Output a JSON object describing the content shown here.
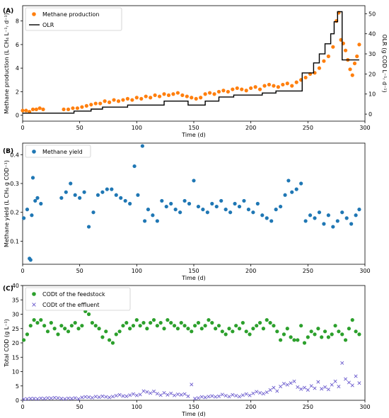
{
  "chart_data": [
    {
      "panel_label": "(A)",
      "type": "scatter",
      "xlabel": "Time (d)",
      "ylabel": "Methane production (L CH₄ L⁻¹ᵣ d⁻¹)",
      "y2label": "OLR (g COD L⁻¹ᵣ d⁻¹)",
      "xlim": [
        0,
        300
      ],
      "ylim": [
        -0.5,
        9.3
      ],
      "y2lim": [
        -3.5,
        54
      ],
      "xticks": [
        "0",
        "50",
        "100",
        "150",
        "200",
        "250",
        "300"
      ],
      "yticks": [
        "0",
        "2",
        "4",
        "6",
        "8"
      ],
      "y2ticks": [
        "0",
        "10",
        "20",
        "30",
        "40",
        "50"
      ],
      "legend": {
        "position": "top-left",
        "entries": [
          "Methane production",
          "OLR"
        ]
      },
      "series": [
        {
          "name": "Methane production",
          "kind": "scatter",
          "color": "#ff7f0e",
          "x": [
            0,
            3,
            6,
            9,
            12,
            15,
            18,
            36,
            40,
            44,
            48,
            52,
            56,
            60,
            64,
            68,
            72,
            76,
            80,
            84,
            88,
            92,
            96,
            100,
            104,
            108,
            112,
            116,
            120,
            124,
            128,
            132,
            136,
            140,
            144,
            148,
            152,
            156,
            160,
            164,
            168,
            172,
            176,
            180,
            184,
            188,
            192,
            196,
            200,
            204,
            208,
            212,
            216,
            220,
            224,
            228,
            232,
            236,
            240,
            244,
            248,
            252,
            256,
            260,
            264,
            268,
            272,
            275,
            277,
            279,
            281,
            283,
            285,
            287,
            289,
            291,
            293,
            295
          ],
          "values": [
            0.4,
            0.4,
            0.3,
            0.5,
            0.5,
            0.6,
            0.5,
            0.5,
            0.5,
            0.6,
            0.6,
            0.7,
            0.8,
            0.9,
            1.0,
            1.0,
            1.2,
            1.1,
            1.3,
            1.2,
            1.3,
            1.4,
            1.3,
            1.5,
            1.4,
            1.6,
            1.5,
            1.7,
            1.6,
            1.8,
            1.7,
            1.8,
            1.9,
            1.7,
            1.6,
            1.5,
            1.4,
            1.5,
            1.8,
            1.9,
            1.8,
            2.0,
            2.1,
            2.0,
            2.2,
            2.3,
            2.2,
            2.1,
            2.3,
            2.4,
            2.2,
            2.5,
            2.6,
            2.5,
            2.4,
            2.6,
            2.7,
            2.5,
            2.8,
            3.0,
            3.2,
            3.5,
            3.6,
            4.0,
            4.6,
            5.0,
            5.8,
            8.0,
            8.7,
            6.4,
            6.1,
            5.5,
            4.7,
            3.9,
            3.4,
            4.4,
            5.0,
            6.0
          ]
        },
        {
          "name": "OLR",
          "kind": "step",
          "axis": "right",
          "color": "#000000",
          "x": [
            0,
            30,
            45,
            60,
            70,
            80,
            92,
            115,
            124,
            136,
            145,
            160,
            172,
            185,
            210,
            222,
            245,
            255,
            260,
            265,
            270,
            273,
            276,
            280,
            295
          ],
          "values": [
            0.5,
            0.5,
            1.5,
            2.5,
            3.5,
            3.5,
            4.5,
            4.5,
            6.5,
            6.5,
            4.5,
            6.5,
            8.5,
            9.5,
            10.5,
            11.5,
            20.5,
            25.5,
            30,
            35,
            40,
            46,
            51,
            27,
            27
          ]
        }
      ]
    },
    {
      "panel_label": "(B)",
      "type": "scatter",
      "xlabel": "Time (d)",
      "ylabel": "Methane yield (L CH₄ g COD⁻¹)",
      "xlim": [
        0,
        300
      ],
      "ylim": [
        0.02,
        0.44
      ],
      "xticks": [
        "0",
        "50",
        "100",
        "150",
        "200",
        "250",
        "300"
      ],
      "yticks": [
        "0.1",
        "0.2",
        "0.3",
        "0.4"
      ],
      "legend": {
        "position": "top-left",
        "entries": [
          "Methane yield"
        ]
      },
      "series": [
        {
          "name": "Methane yield",
          "color": "#1f77b4",
          "x": [
            1,
            4,
            6,
            7,
            8,
            9,
            11,
            13,
            16,
            34,
            38,
            42,
            46,
            50,
            54,
            58,
            62,
            66,
            70,
            74,
            78,
            82,
            86,
            90,
            94,
            98,
            101,
            105,
            107,
            110,
            114,
            118,
            122,
            126,
            130,
            134,
            138,
            142,
            146,
            150,
            154,
            158,
            162,
            166,
            170,
            174,
            178,
            182,
            186,
            190,
            194,
            198,
            202,
            206,
            210,
            214,
            218,
            222,
            226,
            230,
            233,
            236,
            240,
            244,
            248,
            252,
            256,
            260,
            264,
            268,
            272,
            276,
            280,
            284,
            288,
            292,
            295
          ],
          "values": [
            0.18,
            0.21,
            0.04,
            0.035,
            0.19,
            0.32,
            0.24,
            0.25,
            0.23,
            0.25,
            0.27,
            0.3,
            0.26,
            0.25,
            0.27,
            0.15,
            0.2,
            0.26,
            0.27,
            0.28,
            0.28,
            0.26,
            0.25,
            0.24,
            0.23,
            0.36,
            0.26,
            0.43,
            0.17,
            0.21,
            0.19,
            0.17,
            0.24,
            0.22,
            0.23,
            0.21,
            0.2,
            0.24,
            0.23,
            0.31,
            0.22,
            0.21,
            0.2,
            0.23,
            0.22,
            0.24,
            0.21,
            0.2,
            0.23,
            0.22,
            0.24,
            0.21,
            0.2,
            0.23,
            0.19,
            0.18,
            0.17,
            0.21,
            0.22,
            0.26,
            0.31,
            0.27,
            0.28,
            0.3,
            0.17,
            0.19,
            0.18,
            0.2,
            0.16,
            0.19,
            0.15,
            0.17,
            0.2,
            0.18,
            0.16,
            0.19,
            0.21
          ]
        }
      ]
    },
    {
      "panel_label": "(C)",
      "type": "scatter",
      "xlabel": "Time (d)",
      "ylabel": "Total COD (g L⁻¹)",
      "xlim": [
        0,
        300
      ],
      "ylim": [
        0,
        40
      ],
      "xticks": [
        "0",
        "50",
        "100",
        "150",
        "200",
        "250",
        "300"
      ],
      "yticks": [
        "0",
        "5",
        "10",
        "15",
        "20",
        "25",
        "30",
        "35",
        "40"
      ],
      "legend": {
        "position": "top-left",
        "entries": [
          "CODt of the feedstock",
          "CODt of the effluent"
        ]
      },
      "series": [
        {
          "name": "CODt of the feedstock",
          "marker": "circle",
          "color": "#2ca02c",
          "x": [
            1,
            4,
            7,
            10,
            13,
            16,
            19,
            22,
            25,
            28,
            31,
            34,
            37,
            40,
            43,
            46,
            49,
            52,
            55,
            58,
            61,
            64,
            67,
            70,
            73,
            76,
            79,
            82,
            85,
            88,
            91,
            94,
            97,
            100,
            103,
            106,
            109,
            112,
            115,
            118,
            121,
            124,
            127,
            130,
            133,
            136,
            139,
            142,
            145,
            148,
            151,
            154,
            157,
            160,
            163,
            166,
            169,
            172,
            175,
            178,
            181,
            184,
            187,
            190,
            193,
            196,
            199,
            202,
            205,
            208,
            211,
            214,
            217,
            220,
            223,
            226,
            229,
            232,
            235,
            238,
            241,
            244,
            247,
            250,
            253,
            256,
            259,
            262,
            265,
            268,
            271,
            274,
            277,
            280,
            283,
            286,
            289,
            292,
            295
          ],
          "values": [
            21,
            23,
            26,
            28,
            27,
            28,
            26,
            24,
            27,
            25,
            23,
            26,
            25,
            24,
            26,
            27,
            25,
            26,
            31,
            30,
            27,
            26,
            25,
            22,
            24,
            21,
            20,
            23,
            24,
            26,
            27,
            25,
            26,
            28,
            26,
            27,
            25,
            27,
            28,
            26,
            27,
            25,
            28,
            27,
            26,
            25,
            27,
            26,
            25,
            24,
            26,
            27,
            25,
            26,
            28,
            27,
            25,
            26,
            24,
            23,
            25,
            24,
            26,
            25,
            27,
            24,
            23,
            25,
            26,
            27,
            25,
            28,
            27,
            26,
            24,
            21,
            23,
            25,
            22,
            21,
            21,
            26,
            20,
            22,
            24,
            23,
            25,
            22,
            24,
            22,
            23,
            26,
            24,
            23,
            21,
            25,
            28,
            24,
            23
          ]
        },
        {
          "name": "CODt of the effluent",
          "marker": "x",
          "color": "#6a5acd",
          "x": [
            1,
            4,
            7,
            10,
            13,
            16,
            19,
            22,
            25,
            28,
            31,
            34,
            37,
            40,
            43,
            46,
            49,
            52,
            55,
            58,
            61,
            64,
            67,
            70,
            73,
            76,
            79,
            82,
            85,
            88,
            91,
            94,
            97,
            100,
            103,
            106,
            109,
            112,
            115,
            118,
            121,
            124,
            127,
            130,
            133,
            136,
            139,
            142,
            145,
            148,
            151,
            154,
            157,
            160,
            163,
            166,
            169,
            172,
            175,
            178,
            181,
            184,
            187,
            190,
            193,
            196,
            199,
            202,
            205,
            208,
            211,
            214,
            217,
            220,
            223,
            226,
            229,
            232,
            235,
            238,
            241,
            244,
            247,
            250,
            253,
            256,
            259,
            262,
            265,
            268,
            271,
            274,
            277,
            280,
            283,
            286,
            289,
            292,
            295
          ],
          "values": [
            0.4,
            0.5,
            0.6,
            0.6,
            0.5,
            0.7,
            0.6,
            0.8,
            0.7,
            0.9,
            0.8,
            0.6,
            0.5,
            0.7,
            0.6,
            0.8,
            0.5,
            1.0,
            1.2,
            1.1,
            0.9,
            1.3,
            1.1,
            1.4,
            1.2,
            1.0,
            1.3,
            1.6,
            1.9,
            1.5,
            1.4,
            1.8,
            2.2,
            1.7,
            2.0,
            3.2,
            2.9,
            2.5,
            3.1,
            2.3,
            1.8,
            2.6,
            1.9,
            2.4,
            1.7,
            2.1,
            1.9,
            2.2,
            1.4,
            5.5,
            0.6,
            0.8,
            1.2,
            1.0,
            1.3,
            1.5,
            1.2,
            1.4,
            2.0,
            1.6,
            1.3,
            1.9,
            1.6,
            1.3,
            1.8,
            2.2,
            1.7,
            2.4,
            3.0,
            2.6,
            2.3,
            2.8,
            3.6,
            4.4,
            3.2,
            4.8,
            5.8,
            5.4,
            6.0,
            6.6,
            4.6,
            3.9,
            4.4,
            3.6,
            5.0,
            4.2,
            6.4,
            4.0,
            4.6,
            3.8,
            5.4,
            6.6,
            4.8,
            13.0,
            7.4,
            6.2,
            5.2,
            8.4,
            6.0
          ]
        }
      ]
    }
  ]
}
